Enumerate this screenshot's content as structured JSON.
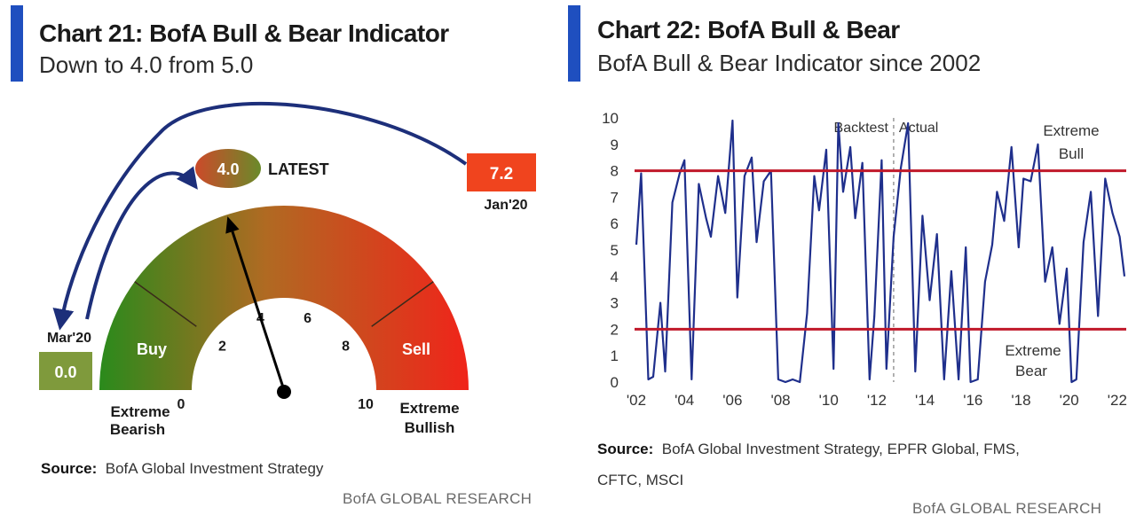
{
  "left": {
    "title": "Chart 21: BofA Bull & Bear Indicator",
    "subtitle": "Down to 4.0 from 5.0",
    "source_label": "Source:",
    "source_text": "BofA Global Investment Strategy",
    "brand": "BofA GLOBAL RESEARCH"
  },
  "right": {
    "title": "Chart 22: BofA Bull & Bear",
    "subtitle": "BofA Bull & Bear Indicator since 2002",
    "source_label": "Source:",
    "source_line1": "BofA Global Investment Strategy, EPFR Global, FMS,",
    "source_line2": "CFTC, MSCI",
    "brand": "BofA GLOBAL RESEARCH"
  },
  "colors": {
    "accent": "#1f4fbf",
    "series": "#1f2f8c",
    "threshold": "#c0182a",
    "gauge_green": "#2e8b1e",
    "gauge_red": "#e82a1a",
    "badge_latest_from": "#cc4a2a",
    "badge_latest_to": "#6a8a2a",
    "badge_jan": "#f0441e",
    "badge_mar": "#7f9a3c"
  },
  "chart_data": [
    {
      "type": "gauge",
      "min": 0,
      "max": 10,
      "ticks": [
        0,
        2,
        4,
        6,
        8,
        10
      ],
      "value": 4.0,
      "value_label": "4.0",
      "value_caption": "LATEST",
      "zones": [
        {
          "label": "Buy",
          "from": 0,
          "to": 2
        },
        {
          "label": "Sell",
          "from": 8,
          "to": 10
        }
      ],
      "end_labels": {
        "min": [
          "Extreme",
          "Bearish"
        ],
        "max": [
          "Extreme",
          "Bullish"
        ]
      },
      "history": [
        {
          "date": "Jan'20",
          "value": 7.2,
          "value_label": "7.2"
        },
        {
          "date": "Mar'20",
          "value": 0.0,
          "value_label": "0.0"
        }
      ]
    },
    {
      "type": "line",
      "x_range": [
        2002,
        2022.3
      ],
      "x_ticks": [
        2002,
        2004,
        2006,
        2008,
        2010,
        2012,
        2014,
        2016,
        2018,
        2020,
        2022
      ],
      "x_tick_labels": [
        "'02",
        "'04",
        "'06",
        "'08",
        "'10",
        "'12",
        "'14",
        "'16",
        "'18",
        "'20",
        "'22"
      ],
      "ylim": [
        0,
        10
      ],
      "y_ticks": [
        0,
        1,
        2,
        3,
        4,
        5,
        6,
        7,
        8,
        9,
        10
      ],
      "thresholds": [
        {
          "value": 8,
          "label": [
            "Extreme",
            "Bull"
          ]
        },
        {
          "value": 2,
          "label": [
            "Extreme",
            "Bear"
          ]
        }
      ],
      "divider": {
        "x": 2012.7,
        "left_label": "Backtest",
        "right_label": "Actual"
      },
      "x": [
        2002.0,
        2002.2,
        2002.5,
        2002.7,
        2003.0,
        2003.2,
        2003.5,
        2003.8,
        2004.0,
        2004.3,
        2004.6,
        2004.9,
        2005.1,
        2005.4,
        2005.7,
        2006.0,
        2006.2,
        2006.5,
        2006.8,
        2007.0,
        2007.3,
        2007.6,
        2007.9,
        2008.2,
        2008.5,
        2008.8,
        2009.1,
        2009.4,
        2009.6,
        2009.9,
        2010.2,
        2010.4,
        2010.6,
        2010.9,
        2011.1,
        2011.4,
        2011.7,
        2011.9,
        2012.2,
        2012.4,
        2012.7,
        2013.0,
        2013.3,
        2013.6,
        2013.9,
        2014.2,
        2014.5,
        2014.8,
        2015.1,
        2015.4,
        2015.7,
        2015.9,
        2016.2,
        2016.5,
        2016.8,
        2017.0,
        2017.3,
        2017.6,
        2017.9,
        2018.1,
        2018.4,
        2018.7,
        2019.0,
        2019.3,
        2019.6,
        2019.9,
        2020.1,
        2020.3,
        2020.6,
        2020.9,
        2021.2,
        2021.5,
        2021.8,
        2022.1,
        2022.3
      ],
      "y": [
        5.2,
        7.9,
        0.1,
        0.2,
        3.0,
        0.4,
        6.8,
        7.9,
        8.4,
        0.1,
        7.5,
        6.2,
        5.5,
        7.8,
        6.4,
        9.9,
        3.2,
        7.8,
        8.5,
        5.3,
        7.6,
        8.0,
        0.1,
        0.0,
        0.1,
        0.0,
        2.6,
        7.8,
        6.5,
        8.8,
        0.5,
        9.8,
        7.2,
        8.9,
        6.2,
        8.3,
        0.1,
        2.5,
        8.4,
        0.5,
        5.5,
        8.1,
        9.8,
        0.4,
        6.3,
        3.1,
        5.6,
        0.1,
        4.2,
        0.1,
        5.1,
        0.0,
        0.1,
        3.8,
        5.2,
        7.2,
        6.1,
        8.9,
        5.1,
        7.7,
        7.6,
        9.0,
        3.8,
        5.1,
        2.2,
        4.3,
        0.0,
        0.1,
        5.3,
        7.2,
        2.5,
        7.7,
        6.4,
        5.5,
        4.0
      ]
    }
  ]
}
